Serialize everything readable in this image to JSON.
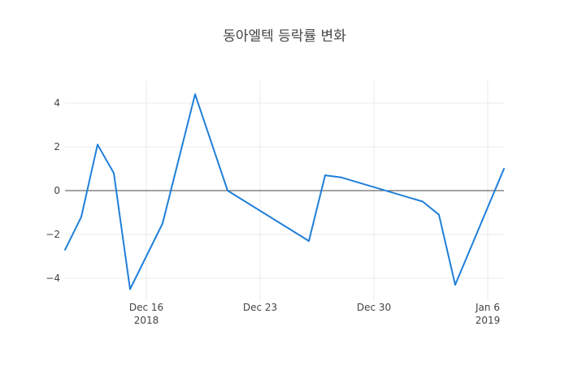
{
  "chart_data": {
    "type": "line",
    "title": "동아엘텍 등락률 변화",
    "xlabel": "",
    "ylabel": "",
    "x": [
      "2018-12-11",
      "2018-12-12",
      "2018-12-13",
      "2018-12-14",
      "2018-12-15",
      "2018-12-17",
      "2018-12-19",
      "2018-12-21",
      "2018-12-26",
      "2018-12-27",
      "2018-12-28",
      "2019-01-02",
      "2019-01-03",
      "2019-01-04",
      "2019-01-07"
    ],
    "series": [
      {
        "values": [
          -2.7,
          -1.2,
          2.1,
          0.8,
          -4.5,
          -1.5,
          4.4,
          0.0,
          -2.3,
          0.7,
          0.6,
          -0.5,
          -1.1,
          -4.3,
          1.0
        ]
      }
    ],
    "xlim": [
      "2018-12-11",
      "2019-01-07"
    ],
    "ylim": [
      -5,
      5
    ],
    "x_ticks": [
      {
        "date": "2018-12-16",
        "label": "Dec 16",
        "sublabel": "2018"
      },
      {
        "date": "2018-12-23",
        "label": "Dec 23",
        "sublabel": ""
      },
      {
        "date": "2018-12-30",
        "label": "Dec 30",
        "sublabel": ""
      },
      {
        "date": "2019-01-06",
        "label": "Jan 6",
        "sublabel": "2019"
      }
    ],
    "y_ticks": [
      {
        "value": -4,
        "label": "−4"
      },
      {
        "value": -2,
        "label": "−2"
      },
      {
        "value": 0,
        "label": "0"
      },
      {
        "value": 2,
        "label": "2"
      },
      {
        "value": 4,
        "label": "4"
      }
    ],
    "grid": true,
    "zeroline": true,
    "colors": {
      "line": "#1f7fd9",
      "grid": "#ebebeb",
      "zeroline": "#444444",
      "text": "#444444"
    }
  }
}
